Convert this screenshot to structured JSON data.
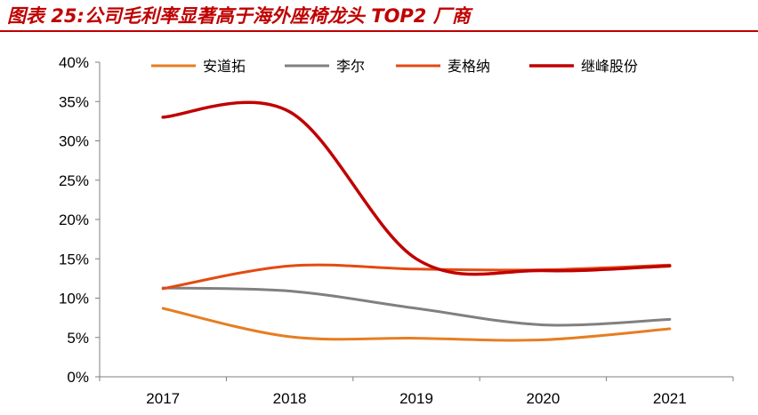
{
  "chart_data": {
    "type": "line",
    "title": "图表 25:公司毛利率显著高于海外座椅龙头 TOP2 厂商",
    "categories": [
      "2017",
      "2018",
      "2019",
      "2020",
      "2021"
    ],
    "ylim": [
      0,
      40
    ],
    "y_tick_labels": [
      "0%",
      "5%",
      "10%",
      "15%",
      "20%",
      "25%",
      "30%",
      "35%",
      "40%"
    ],
    "grid": false,
    "legend_position": "top",
    "series": [
      {
        "name": "安道拓",
        "color": "#e67e22",
        "values": [
          8.7,
          5.1,
          4.9,
          4.7,
          6.1
        ]
      },
      {
        "name": "李尔",
        "color": "#808080",
        "values": [
          11.3,
          10.9,
          8.7,
          6.6,
          7.3
        ]
      },
      {
        "name": "麦格纳",
        "color": "#e34a12",
        "values": [
          11.2,
          14.1,
          13.7,
          13.6,
          14.2
        ]
      },
      {
        "name": "继峰股份",
        "color": "#c00000",
        "values": [
          33.0,
          33.7,
          15.0,
          13.5,
          14.1
        ]
      }
    ]
  }
}
